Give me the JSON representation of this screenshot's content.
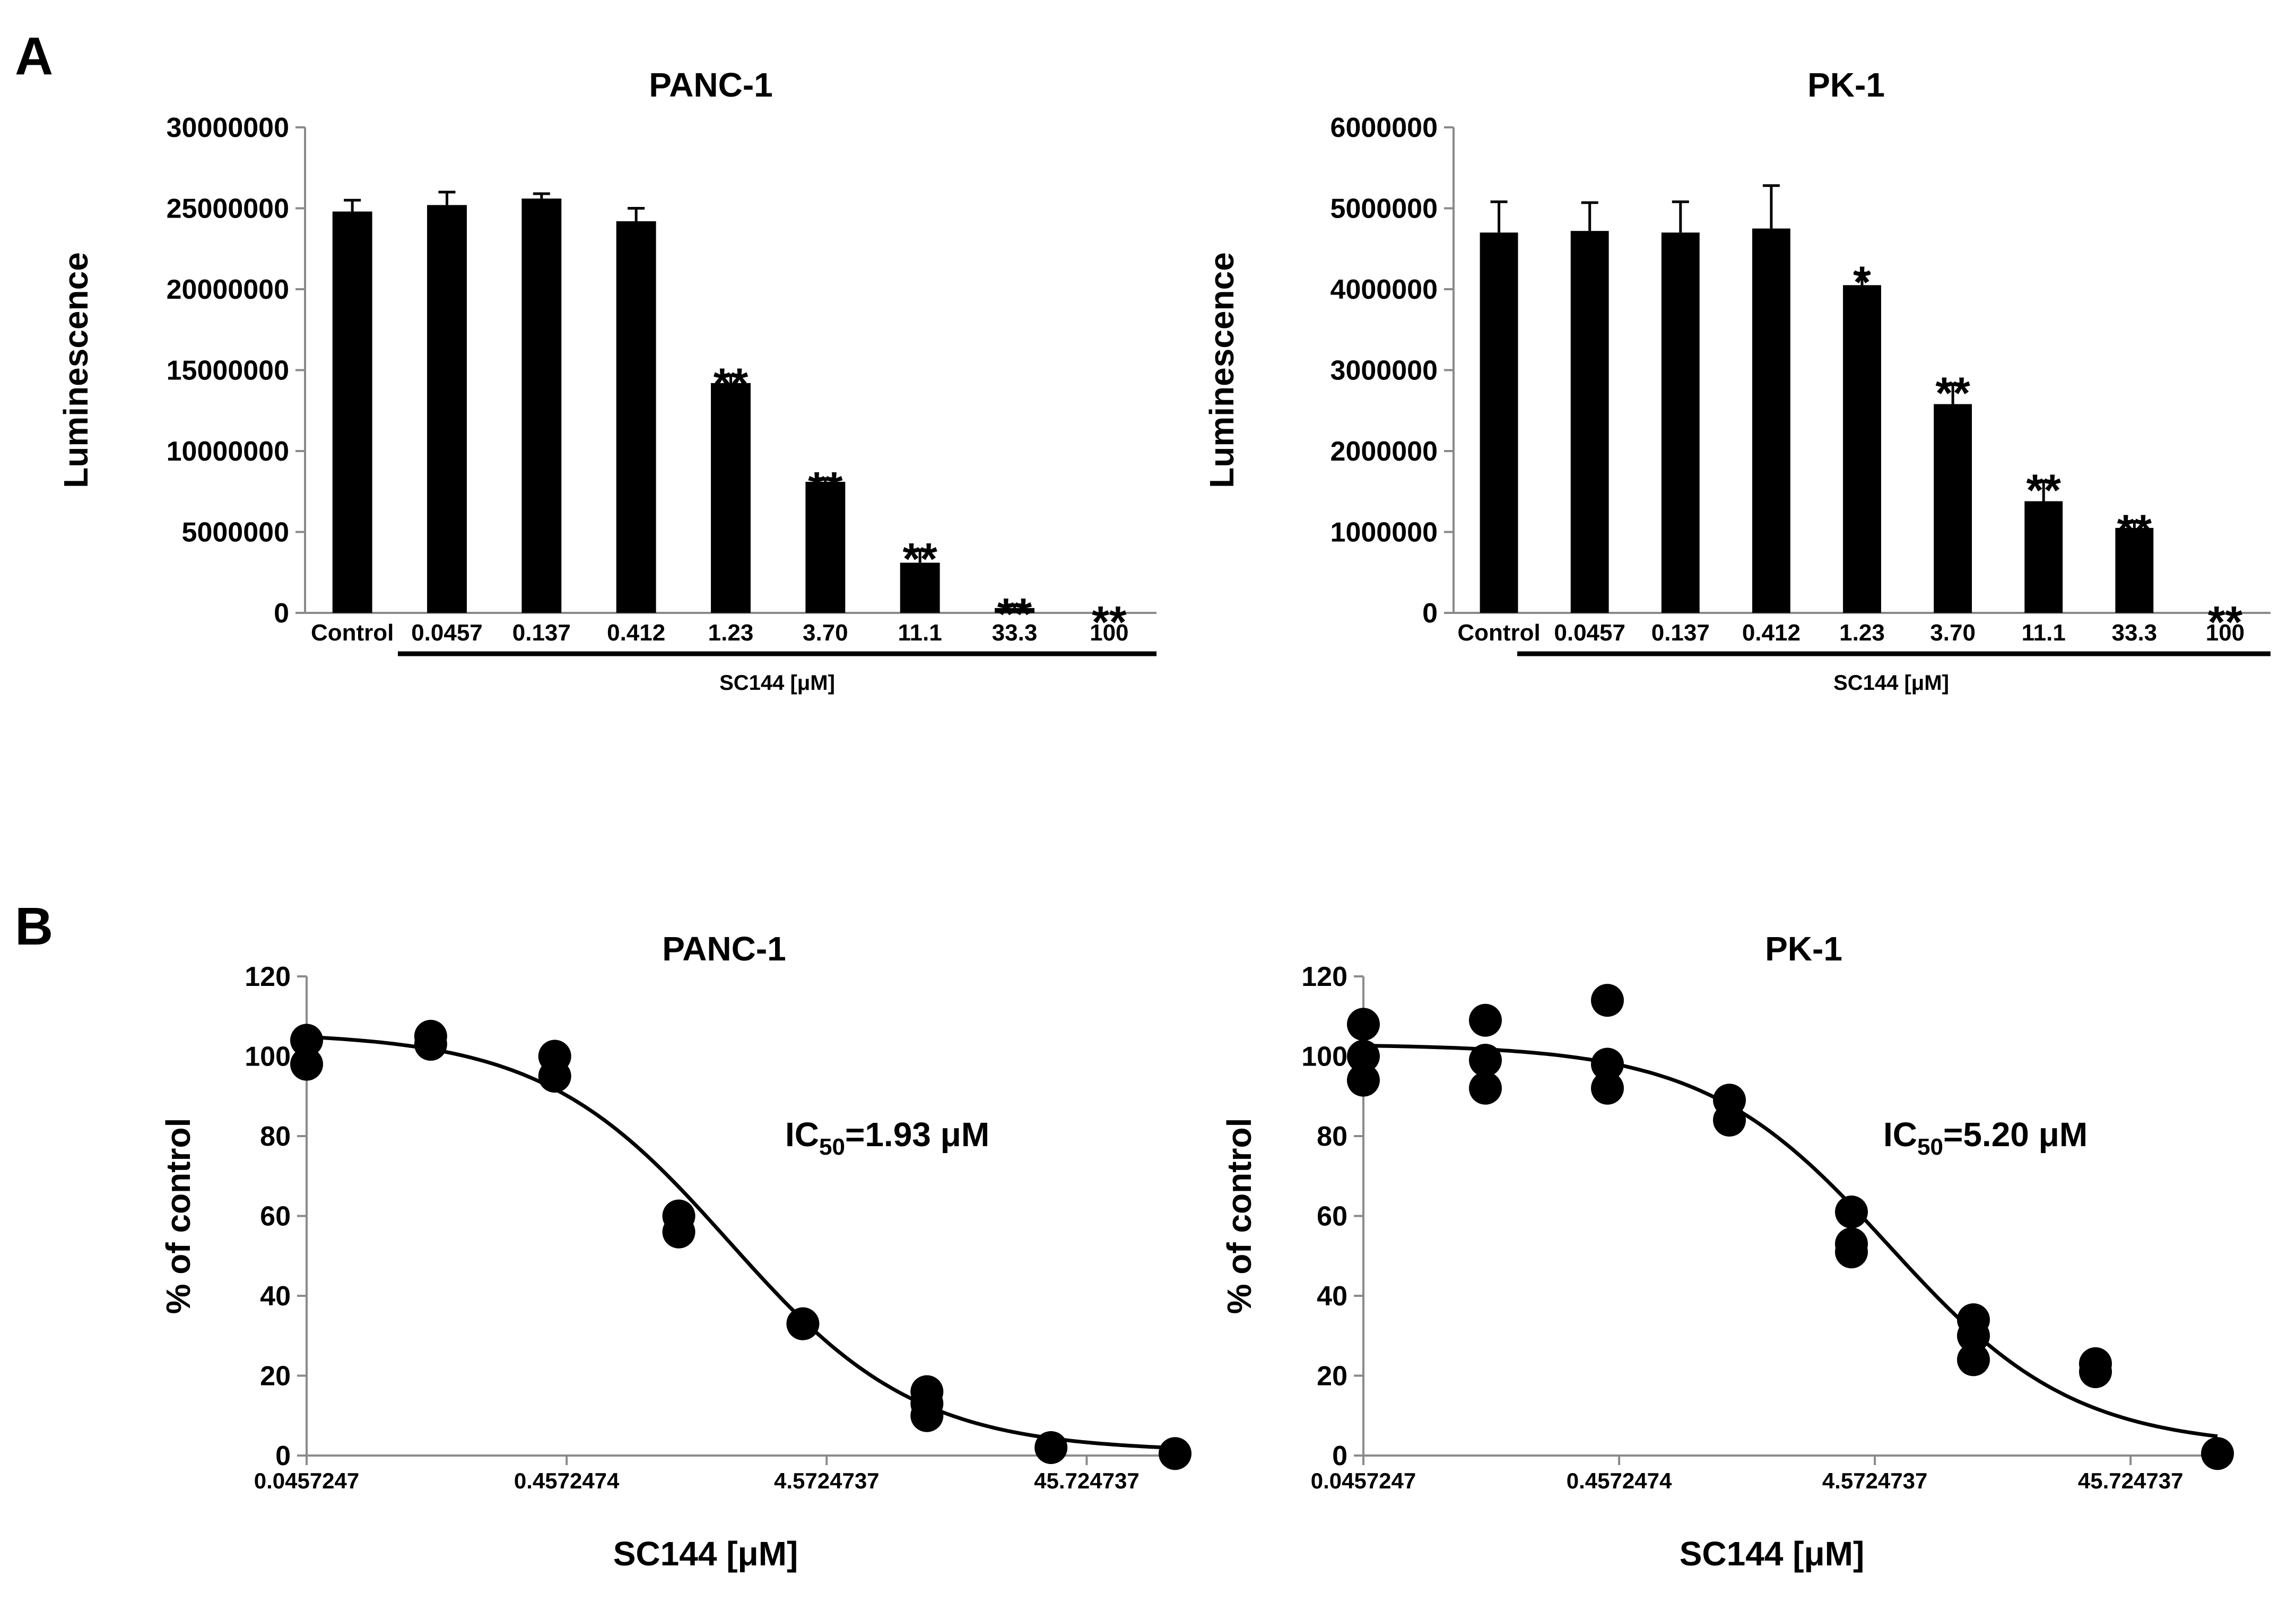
{
  "panel_labels": [
    "A",
    "B"
  ],
  "chart_data": [
    {
      "type": "bar",
      "title": "PANC-1",
      "ylabel": "Luminescence",
      "xlabel": "SC144 [μM]",
      "ylim": [
        0,
        30000000
      ],
      "yticks": [
        "0",
        "5000000",
        "10000000",
        "15000000",
        "20000000",
        "25000000",
        "30000000"
      ],
      "categories": [
        "Control",
        "0.0457",
        "0.137",
        "0.412",
        "1.23",
        "3.70",
        "11.1",
        "33.3",
        "100"
      ],
      "values": [
        24800000,
        25200000,
        25600000,
        24200000,
        14200000,
        8100000,
        3100000,
        300000,
        0
      ],
      "errors": [
        700000,
        800000,
        300000,
        800000,
        500000,
        200000,
        800000,
        200000,
        0
      ],
      "significance": [
        "",
        "",
        "",
        "",
        "**",
        "**",
        "**",
        "**",
        "**"
      ],
      "legend": "none",
      "grid": false
    },
    {
      "type": "bar",
      "title": "PK-1",
      "ylabel": "Luminescence",
      "xlabel": "SC144 [μM]",
      "ylim": [
        0,
        6000000
      ],
      "yticks": [
        "0",
        "1000000",
        "2000000",
        "3000000",
        "4000000",
        "5000000",
        "6000000"
      ],
      "categories": [
        "Control",
        "0.0457",
        "0.137",
        "0.412",
        "1.23",
        "3.70",
        "11.1",
        "33.3",
        "100"
      ],
      "values": [
        4700000,
        4720000,
        4700000,
        4750000,
        4050000,
        2580000,
        1380000,
        1050000,
        0
      ],
      "errors": [
        380000,
        350000,
        380000,
        530000,
        150000,
        250000,
        250000,
        80000,
        0
      ],
      "significance": [
        "",
        "",
        "",
        "",
        "*",
        "**",
        "**",
        "**",
        "**"
      ],
      "legend": "none",
      "grid": false
    },
    {
      "type": "scatter",
      "title": "PANC-1",
      "ylabel": "% of control",
      "xlabel": "SC144 [μM]",
      "xscale": "log",
      "xlim": [
        0.0457247,
        100
      ],
      "ylim": [
        0,
        120
      ],
      "xtick_values": [
        0.0457247,
        0.4572474,
        4.5724737,
        45.724737
      ],
      "xticks": [
        "0.0457247",
        "0.4572474",
        "4.5724737",
        "45.724737"
      ],
      "yticks": [
        "0",
        "20",
        "40",
        "60",
        "80",
        "100",
        "120"
      ],
      "points": [
        {
          "x": 0.0457247,
          "y": 104
        },
        {
          "x": 0.0457247,
          "y": 98
        },
        {
          "x": 0.137174,
          "y": 105
        },
        {
          "x": 0.137174,
          "y": 103
        },
        {
          "x": 0.411523,
          "y": 100
        },
        {
          "x": 0.411523,
          "y": 95
        },
        {
          "x": 1.2345679,
          "y": 60
        },
        {
          "x": 1.2345679,
          "y": 56
        },
        {
          "x": 3.7037037,
          "y": 33
        },
        {
          "x": 11.111111,
          "y": 16
        },
        {
          "x": 11.111111,
          "y": 13
        },
        {
          "x": 11.111111,
          "y": 10
        },
        {
          "x": 33.333333,
          "y": 2
        },
        {
          "x": 100,
          "y": 0.5
        }
      ],
      "fit": {
        "top": 106,
        "bottom": 1,
        "ic50": 1.93,
        "hill": 1.2
      },
      "annotation": {
        "prefix": "IC",
        "sub": "50",
        "suffix": "=1.93 μM"
      },
      "legend": "none",
      "grid": false
    },
    {
      "type": "scatter",
      "title": "PK-1",
      "ylabel": "% of control",
      "xlabel": "SC144 [μM]",
      "xscale": "log",
      "xlim": [
        0.0457247,
        100
      ],
      "ylim": [
        0,
        120
      ],
      "xtick_values": [
        0.0457247,
        0.4572474,
        4.5724737,
        45.724737
      ],
      "xticks": [
        "0.0457247",
        "0.4572474",
        "4.5724737",
        "45.724737"
      ],
      "yticks": [
        "0",
        "20",
        "40",
        "60",
        "80",
        "100",
        "120"
      ],
      "points": [
        {
          "x": 0.0457247,
          "y": 108
        },
        {
          "x": 0.0457247,
          "y": 100
        },
        {
          "x": 0.0457247,
          "y": 94
        },
        {
          "x": 0.137174,
          "y": 109
        },
        {
          "x": 0.137174,
          "y": 99
        },
        {
          "x": 0.137174,
          "y": 92
        },
        {
          "x": 0.411523,
          "y": 114
        },
        {
          "x": 0.411523,
          "y": 98
        },
        {
          "x": 0.411523,
          "y": 92
        },
        {
          "x": 1.2345679,
          "y": 89
        },
        {
          "x": 1.2345679,
          "y": 84
        },
        {
          "x": 3.7037037,
          "y": 61
        },
        {
          "x": 3.7037037,
          "y": 53
        },
        {
          "x": 3.7037037,
          "y": 51
        },
        {
          "x": 11.111111,
          "y": 34
        },
        {
          "x": 11.111111,
          "y": 30
        },
        {
          "x": 11.111111,
          "y": 24
        },
        {
          "x": 33.333333,
          "y": 23
        },
        {
          "x": 33.333333,
          "y": 21
        },
        {
          "x": 100,
          "y": 0.5
        }
      ],
      "fit": {
        "top": 103,
        "bottom": 2,
        "ic50": 5.2,
        "hill": 1.2
      },
      "annotation": {
        "prefix": "IC",
        "sub": "50",
        "suffix": "=5.20 μM"
      },
      "legend": "none",
      "grid": false
    }
  ]
}
